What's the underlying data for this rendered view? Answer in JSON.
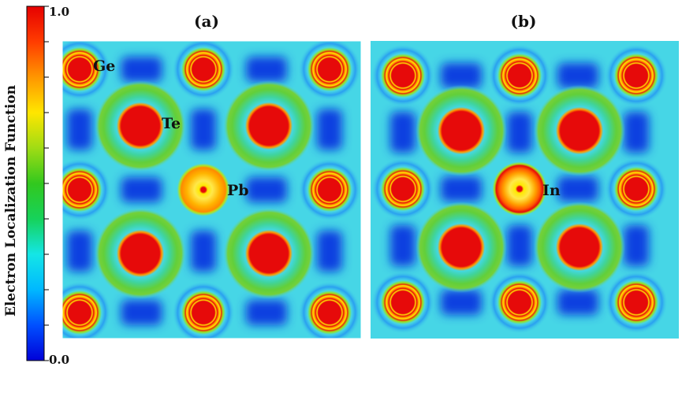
{
  "figure": {
    "colorbar": {
      "title": "Electron Localization Function",
      "max_label": "1.0",
      "min_label": "0.0",
      "stops": [
        "#0000d8",
        "#0050ff",
        "#00b8ff",
        "#14e6e6",
        "#16d25a",
        "#32c81e",
        "#a0dc14",
        "#ffe600",
        "#ff9600",
        "#ff3c00",
        "#e60000"
      ]
    },
    "panels": [
      {
        "id": "a",
        "title": "(a)",
        "center_atom": "Pb",
        "atom_labels": {
          "corner": "Ge",
          "face": "Te",
          "center": "Pb"
        }
      },
      {
        "id": "b",
        "title": "(b)",
        "center_atom": "In",
        "atom_labels": {
          "center": "In"
        }
      }
    ],
    "colors": {
      "background": "#46d6e6",
      "green_ring": "#5ed13a",
      "blue_region": "#1140e0",
      "core_red": "#e60a0a",
      "orange": "#ff8a00",
      "yellow": "#ffe800"
    }
  }
}
